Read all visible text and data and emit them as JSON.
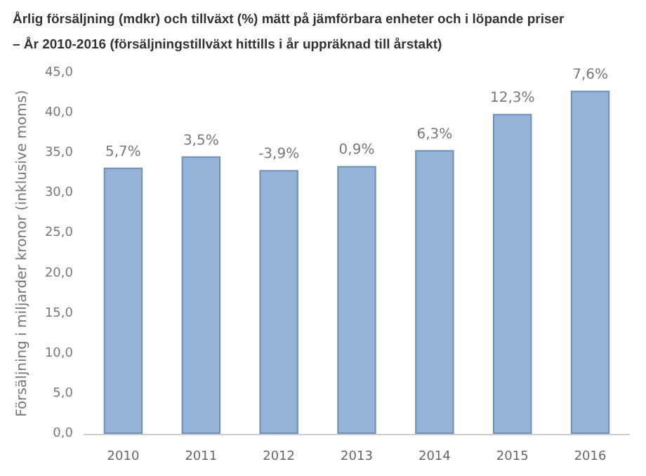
{
  "chart_data": {
    "type": "bar",
    "title": "Årlig försäljning (mdkr) och tillväxt (%) mätt på jämförbara enheter och i löpande priser",
    "subtitle": "– År 2010-2016 (försäljningstillväxt hittills i år uppräknad till årstakt)",
    "ylabel": "Försäljning i miljarder kronor (inklusive moms)",
    "categories": [
      "2010",
      "2011",
      "2012",
      "2013",
      "2014",
      "2015",
      "2016"
    ],
    "values": [
      33.2,
      34.6,
      32.9,
      33.4,
      35.4,
      39.9,
      42.8
    ],
    "annotations": [
      {
        "text": "5,7%",
        "x": "2010",
        "y": 33.2
      },
      {
        "text": "3,5%",
        "x": "2011",
        "y": 34.6
      },
      {
        "text": "-3,9%",
        "x": "2012",
        "y": 32.9
      },
      {
        "text": "0,9%",
        "x": "2013",
        "y": 33.4
      },
      {
        "text": "6,3%",
        "x": "2014",
        "y": 35.4
      },
      {
        "text": "12,3%",
        "x": "2015",
        "y": 39.9
      },
      {
        "text": "7,6%",
        "x": "2016",
        "y": 42.8
      }
    ],
    "color": "#95b3d7",
    "ylim": [
      0,
      45
    ],
    "yticks": [
      {
        "value": 0,
        "label": "0,0"
      },
      {
        "value": 5,
        "label": "5,0"
      },
      {
        "value": 10,
        "label": "10,0"
      },
      {
        "value": 15,
        "label": "15,0"
      },
      {
        "value": 20,
        "label": "20,0"
      },
      {
        "value": 25,
        "label": "25,0"
      },
      {
        "value": 30,
        "label": "30,0"
      },
      {
        "value": 35,
        "label": "35,0"
      },
      {
        "value": 40,
        "label": "40,0"
      },
      {
        "value": 45,
        "label": "45,0"
      }
    ],
    "grid": false
  }
}
